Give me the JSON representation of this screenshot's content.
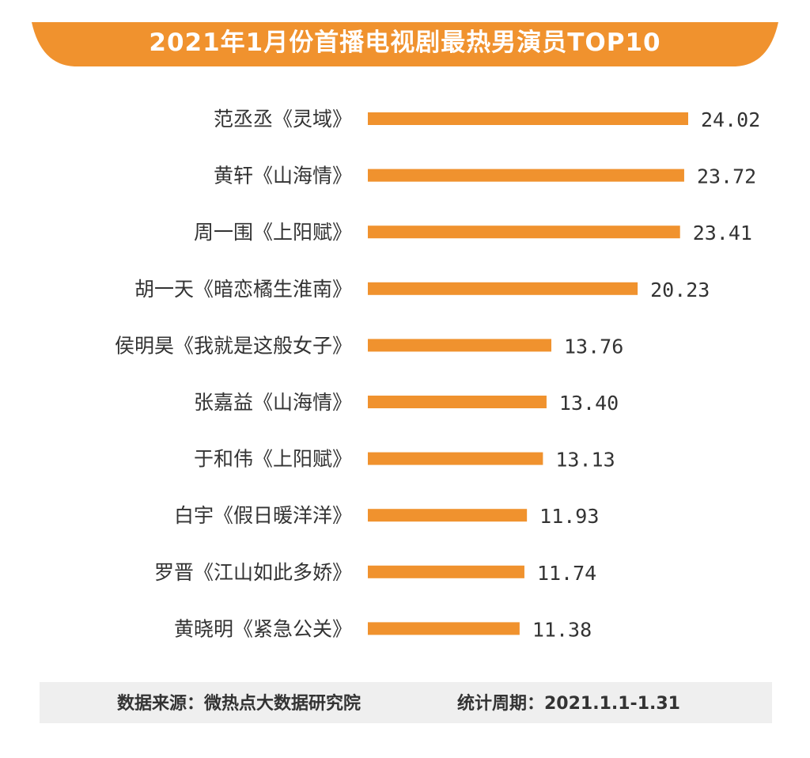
{
  "title": "2021年1月份首播电视剧最热男演员TOP10",
  "colors": {
    "accent": "#f0922e",
    "footer_bg": "#efefef",
    "text": "#333333"
  },
  "chart_data": {
    "type": "bar",
    "orientation": "horizontal",
    "title": "2021年1月份首播电视剧最热男演员TOP10",
    "categories": [
      "范丞丞《灵域》",
      "黄轩《山海情》",
      "周一围《上阳赋》",
      "胡一天《暗恋橘生淮南》",
      "侯明昊《我就是这般女子》",
      "张嘉益《山海情》",
      "于和伟《上阳赋》",
      "白宇《假日暖洋洋》",
      "罗晋《江山如此多娇》",
      "黄晓明《紧急公关》"
    ],
    "values": [
      24.02,
      23.72,
      23.41,
      20.23,
      13.76,
      13.4,
      13.13,
      11.93,
      11.74,
      11.38
    ],
    "value_labels": [
      "24.02",
      "23.72",
      "23.41",
      "20.23",
      "13.76",
      "13.40",
      "13.13",
      "11.93",
      "11.74",
      "11.38"
    ],
    "xlim": [
      0,
      24.02
    ],
    "grid": false,
    "legend": "none"
  },
  "footer": {
    "source": "数据来源：微热点大数据研究院",
    "period": "统计周期：2021.1.1-1.31"
  }
}
